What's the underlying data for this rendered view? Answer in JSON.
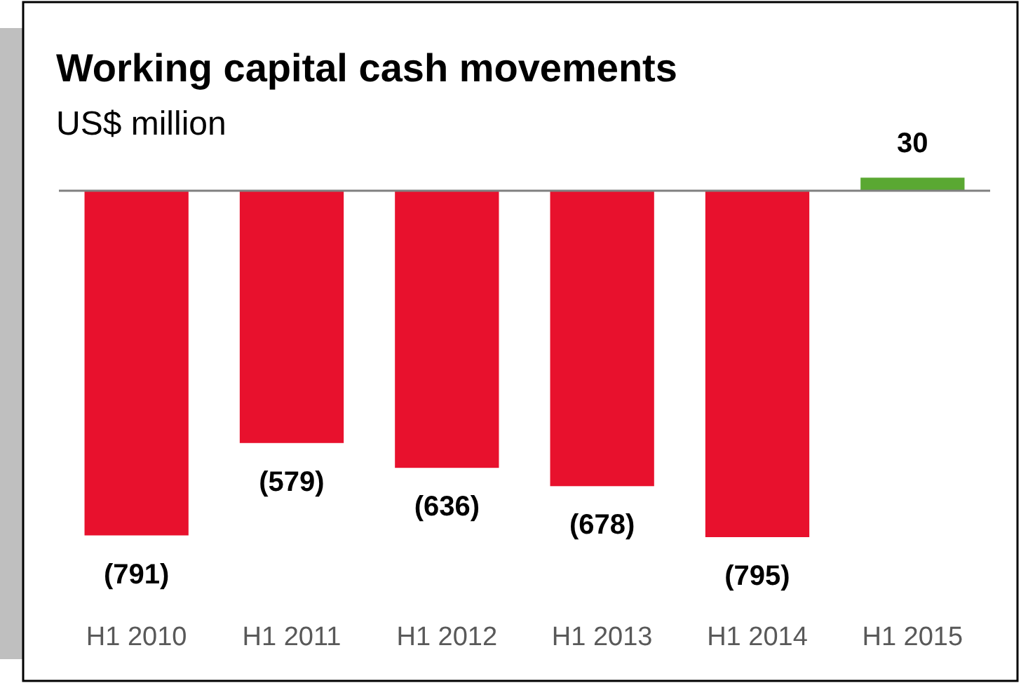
{
  "chart_data": {
    "type": "bar",
    "title": "Working capital cash movements",
    "subtitle": "US$ million",
    "categories": [
      "H1 2010",
      "H1 2011",
      "H1 2012",
      "H1 2013",
      "H1 2014",
      "H1 2015"
    ],
    "values": [
      -791,
      -579,
      -636,
      -678,
      -795,
      30
    ],
    "colors": [
      "#e8112d",
      "#e8112d",
      "#e8112d",
      "#e8112d",
      "#e8112d",
      "#5aa832"
    ],
    "value_labels": [
      "(791)",
      "(579)",
      "(636)",
      "(678)",
      "(795)",
      "30"
    ]
  }
}
